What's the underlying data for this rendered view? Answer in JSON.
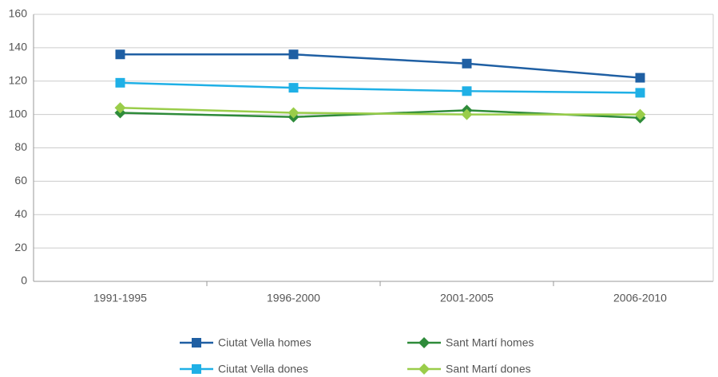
{
  "chart_data": {
    "type": "line",
    "categories": [
      "1991-1995",
      "1996-2000",
      "2001-2005",
      "2006-2010"
    ],
    "series": [
      {
        "name": "Ciutat Vella homes",
        "color": "#1f5fa3",
        "marker": "square",
        "values": [
          136,
          136,
          130.5,
          122
        ]
      },
      {
        "name": "Sant Martí homes",
        "color": "#2e8b3a",
        "marker": "diamond",
        "values": [
          101,
          98.5,
          102.5,
          98
        ]
      },
      {
        "name": "Ciutat Vella dones",
        "color": "#1fb0e6",
        "marker": "square",
        "values": [
          119,
          116,
          114,
          113
        ]
      },
      {
        "name": "Sant Martí dones",
        "color": "#9acd4a",
        "marker": "diamond",
        "values": [
          104,
          101,
          100,
          100
        ]
      }
    ],
    "ylim": [
      0,
      160
    ],
    "yticks": [
      0,
      20,
      40,
      60,
      80,
      100,
      120,
      140,
      160
    ],
    "grid": true,
    "legend": "bottom"
  }
}
